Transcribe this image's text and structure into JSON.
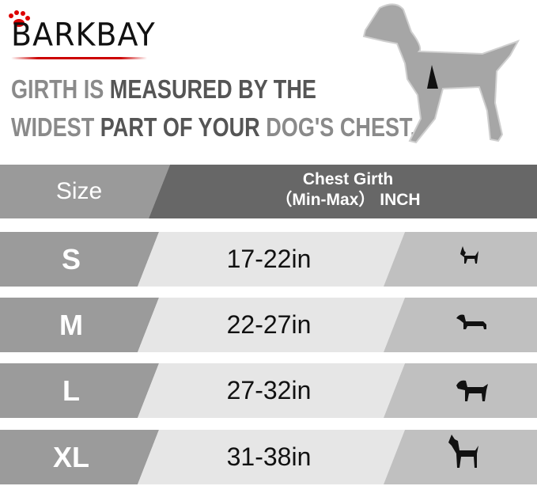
{
  "brand": {
    "logo_text": "BARKBAY",
    "accent_color": "#cc0000"
  },
  "headline": {
    "line1": [
      {
        "text": "GIRTH IS ",
        "tone": "light"
      },
      {
        "text": "MEASURED BY THE",
        "tone": "dark"
      }
    ],
    "line2": [
      {
        "text": "WIDEST ",
        "tone": "light"
      },
      {
        "text": "PART OF YOUR ",
        "tone": "dark"
      },
      {
        "text": "DOG'S CHEST.",
        "tone": "light"
      }
    ]
  },
  "table": {
    "header": {
      "size": "Size",
      "girth_line1": "Chest Girth",
      "girth_line2": "（Min-Max） INCH"
    },
    "rows": [
      {
        "size": "S",
        "girth": "17-22in",
        "icon": "chihuahua-icon"
      },
      {
        "size": "M",
        "girth": "22-27in",
        "icon": "dachshund-icon"
      },
      {
        "size": "L",
        "girth": "27-32in",
        "icon": "labrador-icon"
      },
      {
        "size": "XL",
        "girth": "31-38in",
        "icon": "great-dane-icon"
      }
    ]
  },
  "colors": {
    "header_left": "#9a9a9a",
    "header_right": "#676767",
    "row_left": "#9b9b9b",
    "row_mid": "#e6e6e6",
    "row_right": "#c0c0c0"
  }
}
